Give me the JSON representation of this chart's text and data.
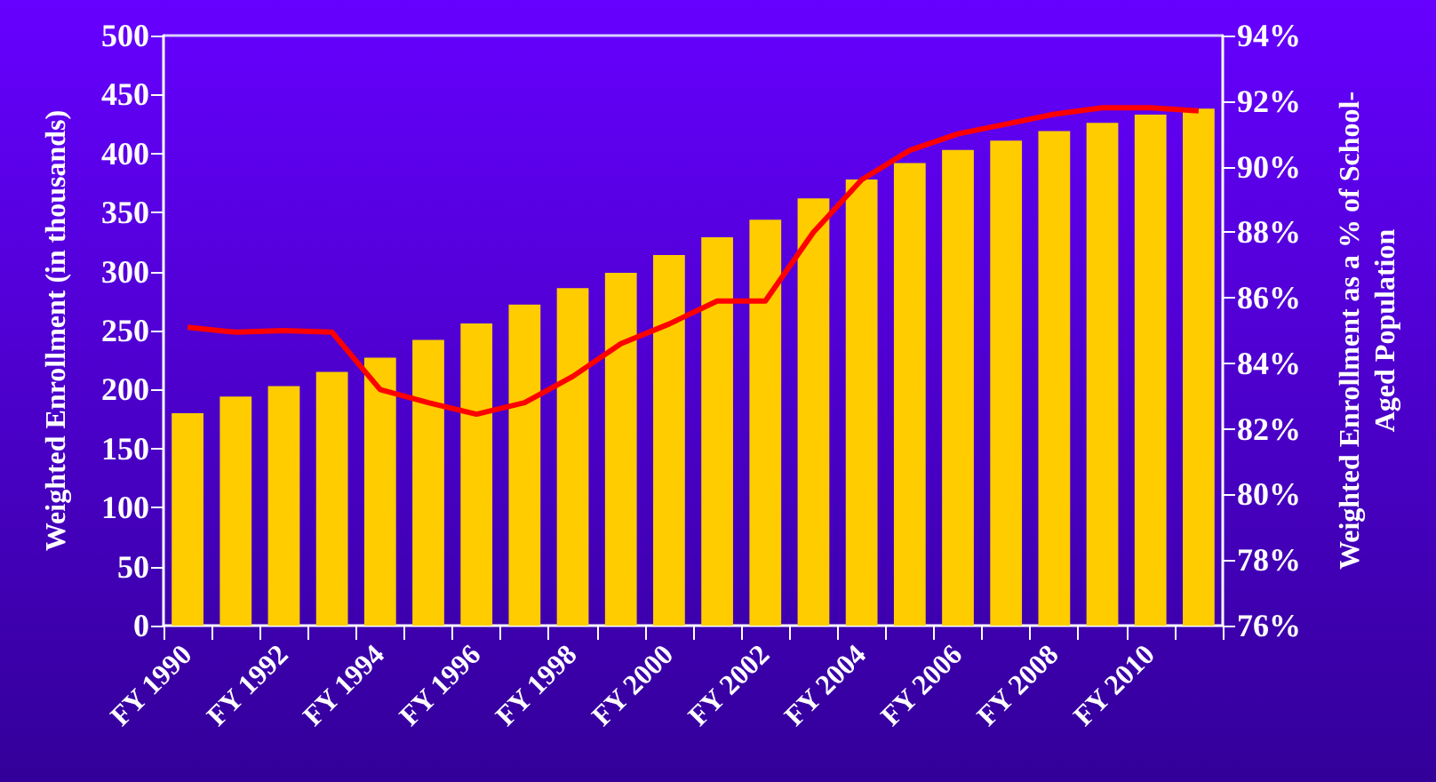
{
  "chart_data": {
    "type": "bar",
    "ylabel": "Weighted Enrollment (in thousands)",
    "y2label": "Weighted Enrollment as a % of School-\nAged Population",
    "categories": [
      "FY 1990",
      null,
      "FY 1992",
      null,
      "FY 1994",
      null,
      "FY 1996",
      null,
      "FY 1998",
      null,
      "FY 2000",
      null,
      "FY 2002",
      null,
      "FY 2004",
      null,
      "FY 2006",
      null,
      "FY 2008",
      null,
      "FY 2010",
      null
    ],
    "series": [
      {
        "color": "#ffcc00",
        "values": [
          180,
          194,
          203,
          215,
          227,
          242,
          256,
          272,
          286,
          299,
          314,
          329,
          344,
          362,
          378,
          392,
          403,
          411,
          419,
          426,
          433,
          438
        ]
      },
      {
        "type": "line",
        "axis": "y2",
        "color": "#ff0000",
        "values": [
          85.1,
          84.95,
          85.0,
          84.95,
          83.2,
          82.8,
          82.45,
          82.8,
          83.6,
          84.6,
          85.2,
          85.9,
          85.9,
          88.0,
          89.6,
          90.5,
          91.0,
          91.3,
          91.6,
          91.8,
          91.8,
          91.7
        ]
      }
    ],
    "ylim": [
      0,
      500
    ],
    "yticks": [
      0,
      50,
      100,
      150,
      200,
      250,
      300,
      350,
      400,
      450,
      500
    ],
    "y2lim": [
      76,
      94
    ],
    "y2ticks": [
      {
        "value": 76,
        "label": "76%"
      },
      {
        "value": 78,
        "label": "78%"
      },
      {
        "value": 80,
        "label": "80%"
      },
      {
        "value": 82,
        "label": "82%"
      },
      {
        "value": 84,
        "label": "84%"
      },
      {
        "value": 86,
        "label": "86%"
      },
      {
        "value": 88,
        "label": "88%"
      },
      {
        "value": 90,
        "label": "90%"
      },
      {
        "value": 92,
        "label": "92%"
      },
      {
        "value": 94,
        "label": "94%"
      }
    ],
    "grid": false,
    "line_style": "solid"
  }
}
